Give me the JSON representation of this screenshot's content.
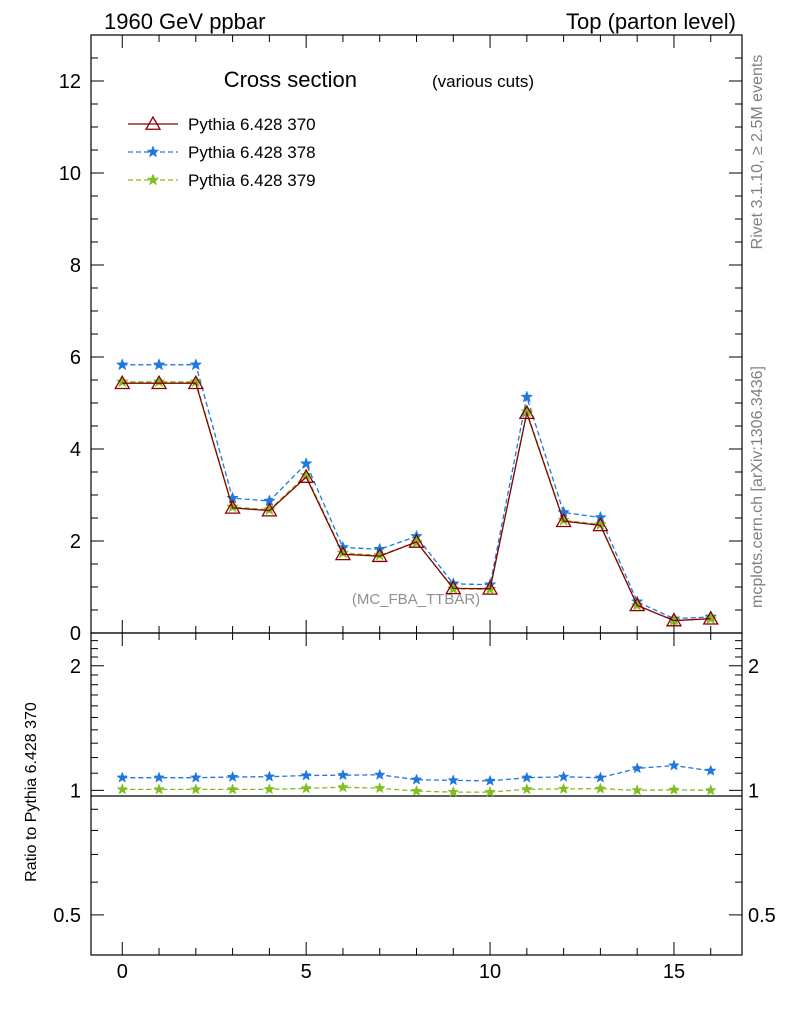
{
  "header": {
    "left": "1960 GeV ppbar",
    "right": "Top (parton level)"
  },
  "side": {
    "rivet": "Rivet 3.1.10, ≥ 2.5M events",
    "mcplots": "mcplots.cern.ch [arXiv:1306.3436]"
  },
  "chart_data": {
    "type": "line",
    "title": "Cross section",
    "subtitle": "(various cuts)",
    "analysis_label": "(MC_FBA_TTBAR)",
    "x": [
      0,
      1,
      2,
      3,
      4,
      5,
      6,
      7,
      8,
      9,
      10,
      11,
      12,
      13,
      14,
      15,
      16
    ],
    "xlim": [
      -0.85,
      16.85
    ],
    "ylim": [
      0,
      13
    ],
    "xticks": [
      "0",
      "5",
      "10",
      "15"
    ],
    "yticks": [
      "0",
      "2",
      "4",
      "6",
      "8",
      "10",
      "12"
    ],
    "legend_position": "top-left",
    "series": [
      {
        "name": "Pythia 6.428 370",
        "color": "#8b0000",
        "marker": "triangle",
        "dash": "solid",
        "values": [
          5.43,
          5.43,
          5.43,
          2.72,
          2.66,
          3.39,
          1.71,
          1.67,
          1.98,
          0.97,
          0.96,
          4.78,
          2.43,
          2.34,
          0.6,
          0.27,
          0.31
        ]
      },
      {
        "name": "Pythia 6.428 378",
        "color": "#1f77e0",
        "marker": "star",
        "dash": "dashed",
        "values": [
          5.83,
          5.83,
          5.83,
          2.93,
          2.87,
          3.68,
          1.86,
          1.82,
          2.1,
          1.07,
          1.05,
          5.13,
          2.62,
          2.51,
          0.68,
          0.31,
          0.35
        ]
      },
      {
        "name": "Pythia 6.428 379",
        "color": "#7fbf1f",
        "marker": "star",
        "dash": "dashed",
        "values": [
          5.46,
          5.46,
          5.46,
          2.74,
          2.68,
          3.43,
          1.74,
          1.69,
          1.97,
          0.96,
          0.95,
          4.81,
          2.45,
          2.36,
          0.6,
          0.27,
          0.31
        ]
      }
    ],
    "ratio": {
      "ylabel": "Ratio to Pythia 6.428 370",
      "ylim": [
        0.4,
        2.4
      ],
      "scale": "log",
      "yticks": [
        "0.5",
        "1",
        "2"
      ],
      "reference": 1,
      "series": [
        {
          "name": "Pythia 6.428 378",
          "color": "#1f77e0",
          "values": [
            1.073,
            1.073,
            1.073,
            1.077,
            1.079,
            1.086,
            1.088,
            1.09,
            1.061,
            1.057,
            1.054,
            1.073,
            1.078,
            1.073,
            1.13,
            1.148,
            1.115
          ]
        },
        {
          "name": "Pythia 6.428 379",
          "color": "#7fbf1f",
          "values": [
            1.005,
            1.005,
            1.005,
            1.005,
            1.006,
            1.011,
            1.017,
            1.012,
            0.996,
            0.99,
            0.99,
            1.006,
            1.008,
            1.009,
            1.0,
            1.003,
            1.0
          ]
        }
      ]
    }
  }
}
